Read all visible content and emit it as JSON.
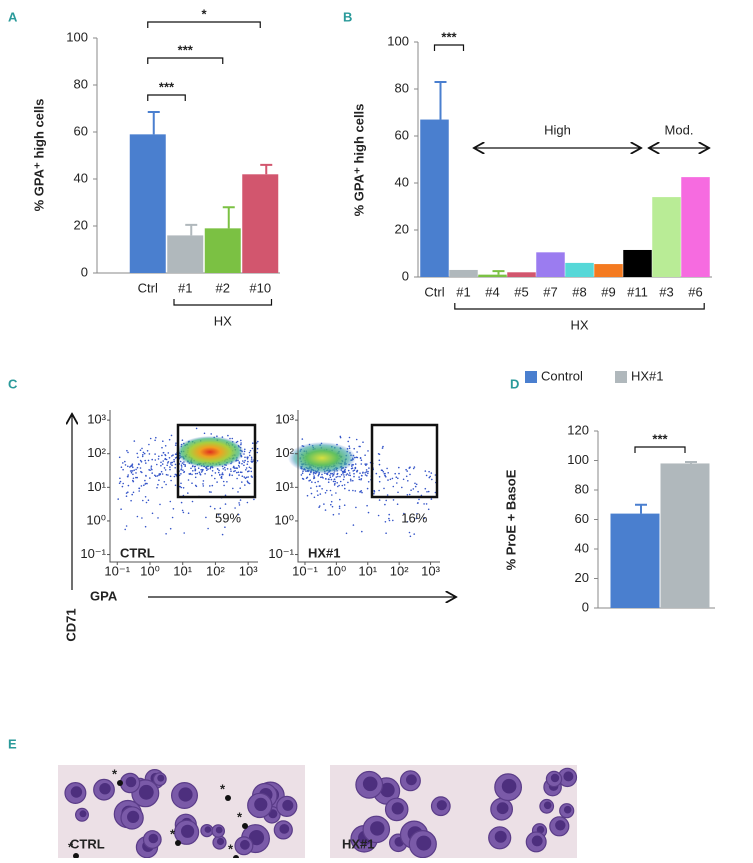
{
  "chart_data": [
    {
      "type": "bar",
      "panel": "A",
      "ylabel": "% GPA⁺ high cells",
      "categories": [
        "Ctrl",
        "#1",
        "#2",
        "#10"
      ],
      "values": [
        59,
        16,
        19,
        42
      ],
      "errors": [
        9.5,
        4.5,
        9,
        4
      ],
      "colors": [
        "#4a7fcf",
        "#b0b8bc",
        "#7bc143",
        "#d2566e"
      ],
      "ylim": [
        0,
        100
      ],
      "yticks": [
        0,
        20,
        40,
        60,
        80,
        100
      ],
      "annotations": [
        "***",
        "***",
        "*"
      ],
      "group_label": "HX"
    },
    {
      "type": "bar",
      "panel": "B",
      "ylabel": "% GPA⁺ high cells",
      "categories": [
        "Ctrl",
        "#1",
        "#4",
        "#5",
        "#7",
        "#8",
        "#9",
        "#11",
        "#3",
        "#6"
      ],
      "values": [
        67,
        3,
        1,
        2,
        10.5,
        6,
        5.5,
        11.5,
        34,
        42.5
      ],
      "errors": [
        16,
        null,
        1.5,
        null,
        null,
        null,
        null,
        null,
        null,
        null
      ],
      "colors": [
        "#4a7fcf",
        "#b0b8bc",
        "#7bc143",
        "#d2566e",
        "#9b7cf0",
        "#56d8d8",
        "#f47a20",
        "#000000",
        "#b9ec96",
        "#f66be0"
      ],
      "ylim": [
        0,
        100
      ],
      "yticks": [
        0,
        20,
        40,
        60,
        80,
        100
      ],
      "annotations": [
        "***"
      ],
      "range_labels": [
        "High",
        "Mod."
      ],
      "group_label": "HX"
    },
    {
      "type": "flow",
      "panel": "C",
      "xlabel": "GPA",
      "ylabel": "CD71",
      "samples": [
        "CTRL",
        "HX#1"
      ],
      "values": [
        59,
        16
      ],
      "value_labels": [
        "59%",
        "16%"
      ],
      "log_scale": true,
      "xlim": [
        0.06,
        2000
      ],
      "ylim": [
        0.06,
        2000
      ],
      "xticks": [
        {
          "value": 0.1,
          "label": "10⁻¹"
        },
        {
          "value": 1,
          "label": "10⁰"
        },
        {
          "value": 10,
          "label": "10¹"
        },
        {
          "value": 100,
          "label": "10²"
        },
        {
          "value": 1000,
          "label": "10³"
        }
      ],
      "yticks": [
        {
          "value": 0.1,
          "label": "10⁻¹"
        },
        {
          "value": 1,
          "label": "10⁰"
        },
        {
          "value": 10,
          "label": "10¹"
        },
        {
          "value": 100,
          "label": "10²"
        },
        {
          "value": 1000,
          "label": "10³"
        }
      ]
    },
    {
      "type": "bar",
      "panel": "D",
      "ylabel": "% ProE + BasoE",
      "series": [
        {
          "name": "Control",
          "color": "#4a7fcf",
          "values": [
            64
          ],
          "errors": [
            6
          ]
        },
        {
          "name": "HX#1",
          "color": "#b0b8bc",
          "values": [
            98
          ],
          "errors": [
            1
          ]
        }
      ],
      "ylim": [
        0,
        120
      ],
      "yticks": [
        0,
        20,
        40,
        60,
        80,
        100,
        120
      ],
      "annotations": [
        "***"
      ]
    },
    {
      "type": "micrograph",
      "panel": "E",
      "samples": [
        "CTRL",
        "HX#1"
      ],
      "marker": "*"
    }
  ]
}
